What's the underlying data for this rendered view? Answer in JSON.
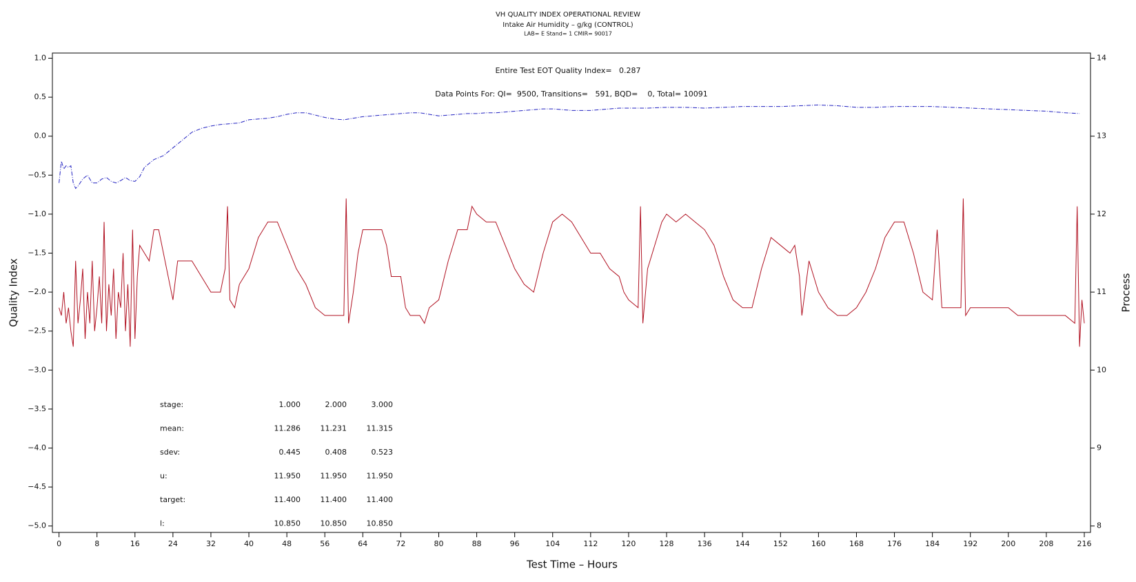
{
  "chart_data": {
    "type": "line",
    "title": "VH QUALITY INDEX OPERATIONAL REVIEW",
    "subtitle": "Intake Air Humidity – g/kg (CONTROL)",
    "note": "LAB= E Stand= 1 CMIR= 90017",
    "annotations": [
      "Entire Test EOT Quality Index=   0.287",
      "Data Points For: QI=  9500, Transitions=   591, BQD=    0, Total= 10091"
    ],
    "x_label": "Test Time – Hours",
    "y_label": "Quality Index",
    "y2_label": "Process",
    "xlim": [
      0,
      216
    ],
    "xticks": [
      0,
      8,
      16,
      24,
      32,
      40,
      48,
      56,
      64,
      72,
      80,
      88,
      96,
      104,
      112,
      120,
      128,
      136,
      144,
      152,
      160,
      168,
      176,
      184,
      192,
      200,
      208,
      216
    ],
    "ylim": [
      -5,
      1
    ],
    "yticks": [
      {
        "value": -5,
        "label": "−5.0"
      },
      {
        "value": -4.5,
        "label": "−4.5"
      },
      {
        "value": -4,
        "label": "−4.0"
      },
      {
        "value": -3.5,
        "label": "−3.5"
      },
      {
        "value": -3,
        "label": "−3.0"
      },
      {
        "value": -2.5,
        "label": "−2.5"
      },
      {
        "value": -2,
        "label": "−2.0"
      },
      {
        "value": -1.5,
        "label": "−1.5"
      },
      {
        "value": -1,
        "label": "−1.0"
      },
      {
        "value": -0.5,
        "label": "−0.5"
      },
      {
        "value": 0,
        "label": "0.0"
      },
      0.5,
      {
        "value": 1,
        "label": "1.0"
      }
    ],
    "y2lim": [
      8,
      14
    ],
    "y2ticks": [
      8,
      9,
      10,
      11,
      12,
      13,
      14
    ],
    "series": [
      {
        "color": "#2020c0",
        "axis": "y",
        "x": [
          0,
          0.5,
          1,
          1.5,
          2,
          2.5,
          3,
          3.5,
          4,
          5,
          6,
          7,
          8,
          9,
          10,
          11,
          12,
          13,
          14,
          15,
          16,
          17,
          18,
          20,
          22,
          24,
          26,
          28,
          30,
          32,
          34,
          36,
          38,
          40,
          42,
          44,
          46,
          48,
          50,
          52,
          54,
          56,
          58,
          60,
          62,
          64,
          66,
          68,
          70,
          72,
          74,
          76,
          78,
          80,
          82,
          84,
          86,
          88,
          90,
          92,
          94,
          96,
          98,
          100,
          102,
          104,
          106,
          108,
          110,
          112,
          114,
          116,
          118,
          120,
          124,
          128,
          132,
          136,
          140,
          144,
          148,
          152,
          156,
          160,
          164,
          168,
          172,
          176,
          180,
          184,
          188,
          192,
          196,
          200,
          204,
          208,
          212,
          215
        ],
        "values": [
          -0.6,
          -0.32,
          -0.42,
          -0.38,
          -0.4,
          -0.38,
          -0.6,
          -0.67,
          -0.64,
          -0.55,
          -0.5,
          -0.6,
          -0.6,
          -0.55,
          -0.53,
          -0.58,
          -0.6,
          -0.57,
          -0.53,
          -0.57,
          -0.58,
          -0.52,
          -0.4,
          -0.3,
          -0.25,
          -0.15,
          -0.05,
          0.05,
          0.1,
          0.13,
          0.15,
          0.16,
          0.17,
          0.21,
          0.22,
          0.23,
          0.25,
          0.28,
          0.3,
          0.3,
          0.27,
          0.24,
          0.22,
          0.21,
          0.23,
          0.25,
          0.26,
          0.27,
          0.28,
          0.29,
          0.3,
          0.3,
          0.28,
          0.26,
          0.27,
          0.28,
          0.29,
          0.29,
          0.3,
          0.3,
          0.31,
          0.32,
          0.33,
          0.34,
          0.35,
          0.35,
          0.34,
          0.33,
          0.33,
          0.33,
          0.34,
          0.35,
          0.36,
          0.36,
          0.36,
          0.37,
          0.37,
          0.36,
          0.37,
          0.38,
          0.38,
          0.38,
          0.39,
          0.4,
          0.39,
          0.37,
          0.37,
          0.38,
          0.38,
          0.38,
          0.37,
          0.36,
          0.35,
          0.34,
          0.33,
          0.32,
          0.3,
          0.29
        ]
      },
      {
        "color": "#b01020",
        "axis": "y2",
        "x": [
          0,
          0.5,
          1,
          1.5,
          2,
          2.5,
          3,
          3.5,
          4,
          4.5,
          5,
          5.5,
          6,
          6.5,
          7,
          7.5,
          8,
          8.5,
          9,
          9.5,
          10,
          10.5,
          11,
          11.5,
          12,
          12.5,
          13,
          13.5,
          14,
          14.5,
          15,
          15.5,
          16,
          16.5,
          17,
          18,
          19,
          20,
          21,
          22,
          23,
          24,
          25,
          26,
          28,
          30,
          32,
          34,
          35,
          35.5,
          36,
          37,
          38,
          40,
          42,
          44,
          46,
          48,
          50,
          52,
          54,
          56,
          58,
          60,
          60.5,
          61,
          62,
          63,
          64,
          66,
          68,
          69,
          70,
          72,
          73,
          74,
          76,
          77,
          78,
          80,
          82,
          84,
          86,
          87,
          88,
          90,
          92,
          94,
          96,
          98,
          100,
          102,
          104,
          106,
          108,
          110,
          112,
          114,
          116,
          118,
          119,
          120,
          122,
          122.5,
          123,
          124,
          126,
          127,
          128,
          130,
          132,
          134,
          136,
          138,
          140,
          142,
          144,
          146,
          148,
          150,
          152,
          154,
          155,
          156,
          156.5,
          158,
          160,
          162,
          164,
          166,
          168,
          170,
          172,
          174,
          176,
          178,
          180,
          182,
          184,
          185,
          186,
          188,
          190,
          190.5,
          191,
          192,
          194,
          196,
          198,
          200,
          202,
          204,
          206,
          208,
          210,
          212,
          214,
          214.5,
          215,
          215.5,
          216
        ],
        "values": [
          10.8,
          10.7,
          11.0,
          10.6,
          10.8,
          10.5,
          10.3,
          11.4,
          10.6,
          10.9,
          11.3,
          10.4,
          11.0,
          10.6,
          11.4,
          10.5,
          10.8,
          11.2,
          10.6,
          11.9,
          10.5,
          11.1,
          10.7,
          11.3,
          10.4,
          11.0,
          10.8,
          11.5,
          10.5,
          11.1,
          10.3,
          11.8,
          10.4,
          11.2,
          11.6,
          11.5,
          11.4,
          11.8,
          11.8,
          11.5,
          11.2,
          10.9,
          11.4,
          11.4,
          11.4,
          11.2,
          11.0,
          11.0,
          11.3,
          12.1,
          10.9,
          10.8,
          11.1,
          11.3,
          11.7,
          11.9,
          11.9,
          11.6,
          11.3,
          11.1,
          10.8,
          10.7,
          10.7,
          10.7,
          12.2,
          10.6,
          11.0,
          11.5,
          11.8,
          11.8,
          11.8,
          11.6,
          11.2,
          11.2,
          10.8,
          10.7,
          10.7,
          10.6,
          10.8,
          10.9,
          11.4,
          11.8,
          11.8,
          12.1,
          12.0,
          11.9,
          11.9,
          11.6,
          11.3,
          11.1,
          11.0,
          11.5,
          11.9,
          12.0,
          11.9,
          11.7,
          11.5,
          11.5,
          11.3,
          11.2,
          11.0,
          10.9,
          10.8,
          12.1,
          10.6,
          11.3,
          11.7,
          11.9,
          12.0,
          11.9,
          12.0,
          11.9,
          11.8,
          11.6,
          11.2,
          10.9,
          10.8,
          10.8,
          11.3,
          11.7,
          11.6,
          11.5,
          11.6,
          11.2,
          10.7,
          11.4,
          11.0,
          10.8,
          10.7,
          10.7,
          10.8,
          11.0,
          11.3,
          11.7,
          11.9,
          11.9,
          11.5,
          11.0,
          10.9,
          11.8,
          10.8,
          10.8,
          10.8,
          12.2,
          10.7,
          10.8,
          10.8,
          10.8,
          10.8,
          10.8,
          10.7,
          10.7,
          10.7,
          10.7,
          10.7,
          10.7,
          10.6,
          12.1,
          10.3,
          10.9,
          10.6
        ]
      }
    ],
    "stats_table": {
      "rows": [
        [
          "stage:",
          "1.000",
          "2.000",
          "3.000"
        ],
        [
          "mean:",
          "11.286",
          "11.231",
          "11.315"
        ],
        [
          "sdev:",
          "0.445",
          "0.408",
          "0.523"
        ],
        [
          "u:",
          "11.950",
          "11.950",
          "11.950"
        ],
        [
          "target:",
          "11.400",
          "11.400",
          "11.400"
        ],
        [
          "l:",
          "10.850",
          "10.850",
          "10.850"
        ]
      ]
    }
  }
}
